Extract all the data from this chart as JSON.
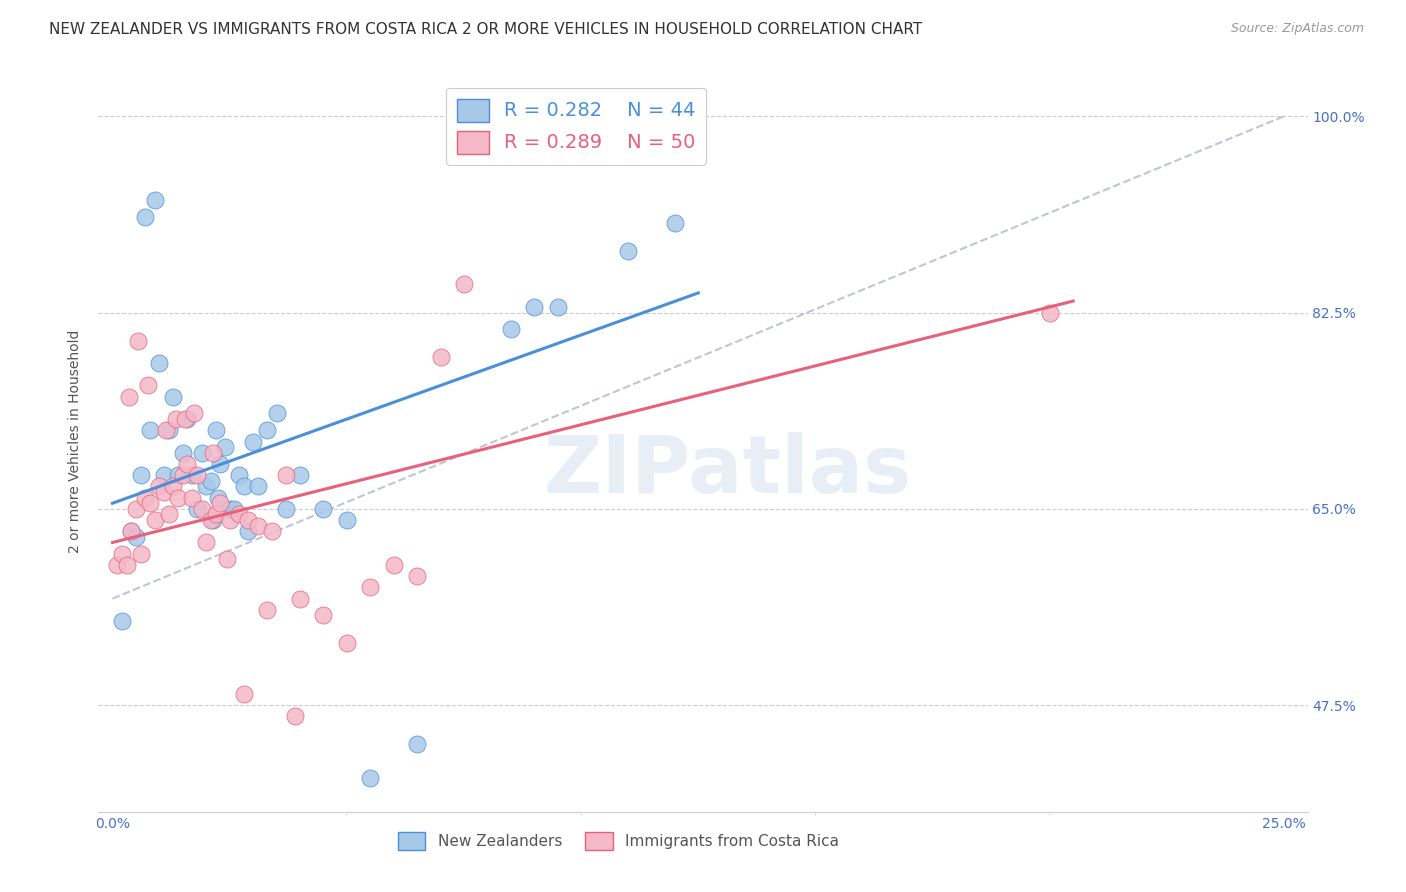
{
  "title": "NEW ZEALANDER VS IMMIGRANTS FROM COSTA RICA 2 OR MORE VEHICLES IN HOUSEHOLD CORRELATION CHART",
  "source": "Source: ZipAtlas.com",
  "ylabel": "2 or more Vehicles in Household",
  "xlim": [
    -0.3,
    25.5
  ],
  "ylim": [
    38.0,
    104.0
  ],
  "yticks": [
    47.5,
    65.0,
    82.5,
    100.0
  ],
  "yticklabels": [
    "47.5%",
    "65.0%",
    "82.5%",
    "100.0%"
  ],
  "xtick_positions": [
    0,
    5,
    10,
    15,
    20,
    25
  ],
  "xticklabels": [
    "0.0%",
    "",
    "",
    "",
    "",
    "25.0%"
  ],
  "blue_color": "#a8c8e8",
  "pink_color": "#f4b8c8",
  "trend_blue": "#4a90d9",
  "trend_pink": "#e8607a",
  "diagonal_color": "#b0b8c8",
  "legend_R_blue": "0.282",
  "legend_N_blue": "44",
  "legend_R_pink": "0.289",
  "legend_N_pink": "50",
  "watermark": "ZIPatlas",
  "title_fontsize": 11,
  "axis_label_fontsize": 10,
  "tick_fontsize": 10,
  "blue_x": [
    0.2,
    0.4,
    0.5,
    0.6,
    0.7,
    0.8,
    0.9,
    1.0,
    1.1,
    1.2,
    1.3,
    1.4,
    1.5,
    1.6,
    1.7,
    1.8,
    1.9,
    2.0,
    2.1,
    2.2,
    2.3,
    2.4,
    2.5,
    2.6,
    2.7,
    2.8,
    2.9,
    3.0,
    3.1,
    3.3,
    3.5,
    3.7,
    4.0,
    4.5,
    5.0,
    5.5,
    6.5,
    8.5,
    9.0,
    9.5,
    11.0,
    12.0,
    2.15,
    2.25
  ],
  "blue_y": [
    55.0,
    63.0,
    62.5,
    68.0,
    91.0,
    72.0,
    92.5,
    78.0,
    68.0,
    72.0,
    75.0,
    68.0,
    70.0,
    73.0,
    68.0,
    65.0,
    70.0,
    67.0,
    67.5,
    72.0,
    69.0,
    70.5,
    65.0,
    65.0,
    68.0,
    67.0,
    63.0,
    71.0,
    67.0,
    72.0,
    73.5,
    65.0,
    68.0,
    65.0,
    64.0,
    41.0,
    44.0,
    81.0,
    83.0,
    83.0,
    88.0,
    90.5,
    64.0,
    66.0
  ],
  "pink_x": [
    0.1,
    0.2,
    0.3,
    0.4,
    0.5,
    0.6,
    0.7,
    0.8,
    0.9,
    1.0,
    1.1,
    1.2,
    1.3,
    1.4,
    1.5,
    1.6,
    1.7,
    1.8,
    1.9,
    2.0,
    2.1,
    2.2,
    2.3,
    2.5,
    2.7,
    2.9,
    3.1,
    3.4,
    3.7,
    4.0,
    4.5,
    5.0,
    5.5,
    6.0,
    6.5,
    7.0,
    7.5,
    0.35,
    0.55,
    0.75,
    1.15,
    1.35,
    1.55,
    1.75,
    2.15,
    2.45,
    2.8,
    3.3,
    20.0,
    3.9
  ],
  "pink_y": [
    60.0,
    61.0,
    60.0,
    63.0,
    65.0,
    61.0,
    66.0,
    65.5,
    64.0,
    67.0,
    66.5,
    64.5,
    67.0,
    66.0,
    68.0,
    69.0,
    66.0,
    68.0,
    65.0,
    62.0,
    64.0,
    64.5,
    65.5,
    64.0,
    64.5,
    64.0,
    63.5,
    63.0,
    68.0,
    57.0,
    55.5,
    53.0,
    58.0,
    60.0,
    59.0,
    78.5,
    85.0,
    75.0,
    80.0,
    76.0,
    72.0,
    73.0,
    73.0,
    73.5,
    70.0,
    60.5,
    48.5,
    56.0,
    82.5,
    46.5
  ]
}
